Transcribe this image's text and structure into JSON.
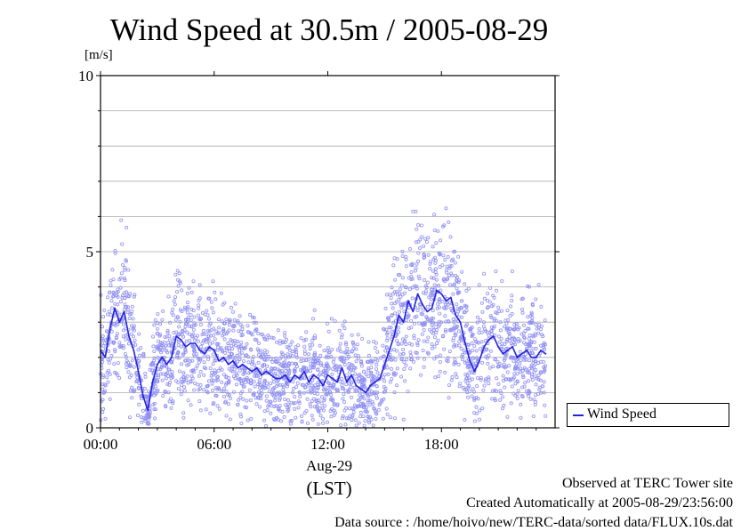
{
  "chart_data": {
    "type": "scatter",
    "title": "Wind Speed at 30.5m / 2005-08-29",
    "ylabel": "[m/s]",
    "xlabel": "(LST)",
    "date_label": "Aug-29",
    "ylim": [
      0,
      10
    ],
    "y_ticks": [
      "0",
      "5",
      "10"
    ],
    "xlim_hours": [
      0,
      24
    ],
    "x_ticks": [
      "00:00",
      "06:00",
      "12:00",
      "18:00"
    ],
    "grid": true,
    "legend_position": "right",
    "series": [
      {
        "name": "Wind Speed",
        "kind": "line-with-scatter",
        "color": "#2222dd",
        "scatter_color": "#8f8ff4",
        "x_hours": [
          0.0,
          0.25,
          0.5,
          0.75,
          1.0,
          1.25,
          1.5,
          1.75,
          2.0,
          2.25,
          2.5,
          2.75,
          3.0,
          3.25,
          3.5,
          3.75,
          4.0,
          4.25,
          4.5,
          4.75,
          5.0,
          5.25,
          5.5,
          5.75,
          6.0,
          6.25,
          6.5,
          6.75,
          7.0,
          7.25,
          7.5,
          7.75,
          8.0,
          8.25,
          8.5,
          8.75,
          9.0,
          9.25,
          9.5,
          9.75,
          10.0,
          10.25,
          10.5,
          10.75,
          11.0,
          11.25,
          11.5,
          11.75,
          12.0,
          12.25,
          12.5,
          12.75,
          13.0,
          13.25,
          13.5,
          13.75,
          14.0,
          14.25,
          14.5,
          14.75,
          15.0,
          15.25,
          15.5,
          15.75,
          16.0,
          16.25,
          16.5,
          16.75,
          17.0,
          17.25,
          17.5,
          17.75,
          18.0,
          18.25,
          18.5,
          18.75,
          19.0,
          19.25,
          19.5,
          19.75,
          20.0,
          20.25,
          20.5,
          20.75,
          21.0,
          21.25,
          21.5,
          21.75,
          22.0,
          22.25,
          22.5,
          22.75,
          23.0,
          23.25,
          23.5
        ],
        "values": [
          2.2,
          2.0,
          2.8,
          3.4,
          3.0,
          3.3,
          2.6,
          2.2,
          1.6,
          0.9,
          0.5,
          1.3,
          1.8,
          2.0,
          1.8,
          2.0,
          2.6,
          2.5,
          2.3,
          2.4,
          2.4,
          2.2,
          2.1,
          2.3,
          2.2,
          1.9,
          2.0,
          1.8,
          1.9,
          1.7,
          1.8,
          1.7,
          1.6,
          1.7,
          1.5,
          1.6,
          1.5,
          1.4,
          1.4,
          1.5,
          1.3,
          1.5,
          1.4,
          1.6,
          1.3,
          1.5,
          1.4,
          1.2,
          1.5,
          1.4,
          1.3,
          1.7,
          1.3,
          1.5,
          1.2,
          1.1,
          1.0,
          1.2,
          1.3,
          1.4,
          1.8,
          2.2,
          2.6,
          3.2,
          3.0,
          3.6,
          3.3,
          3.8,
          3.5,
          3.3,
          3.4,
          3.9,
          3.8,
          3.6,
          3.7,
          3.2,
          3.0,
          2.4,
          1.9,
          1.6,
          1.9,
          2.3,
          2.5,
          2.6,
          2.3,
          2.1,
          2.2,
          2.3,
          2.0,
          2.1,
          2.2,
          2.0,
          2.0,
          2.2,
          2.1
        ]
      }
    ]
  },
  "footer": {
    "line1": "Observed at TERC Tower site",
    "line2": "Created Automatically at 2005-08-29/23:56:00",
    "line3": "Data source : /home/hoivo/new/TERC-data/sorted  data/FLUX.10s.dat"
  }
}
